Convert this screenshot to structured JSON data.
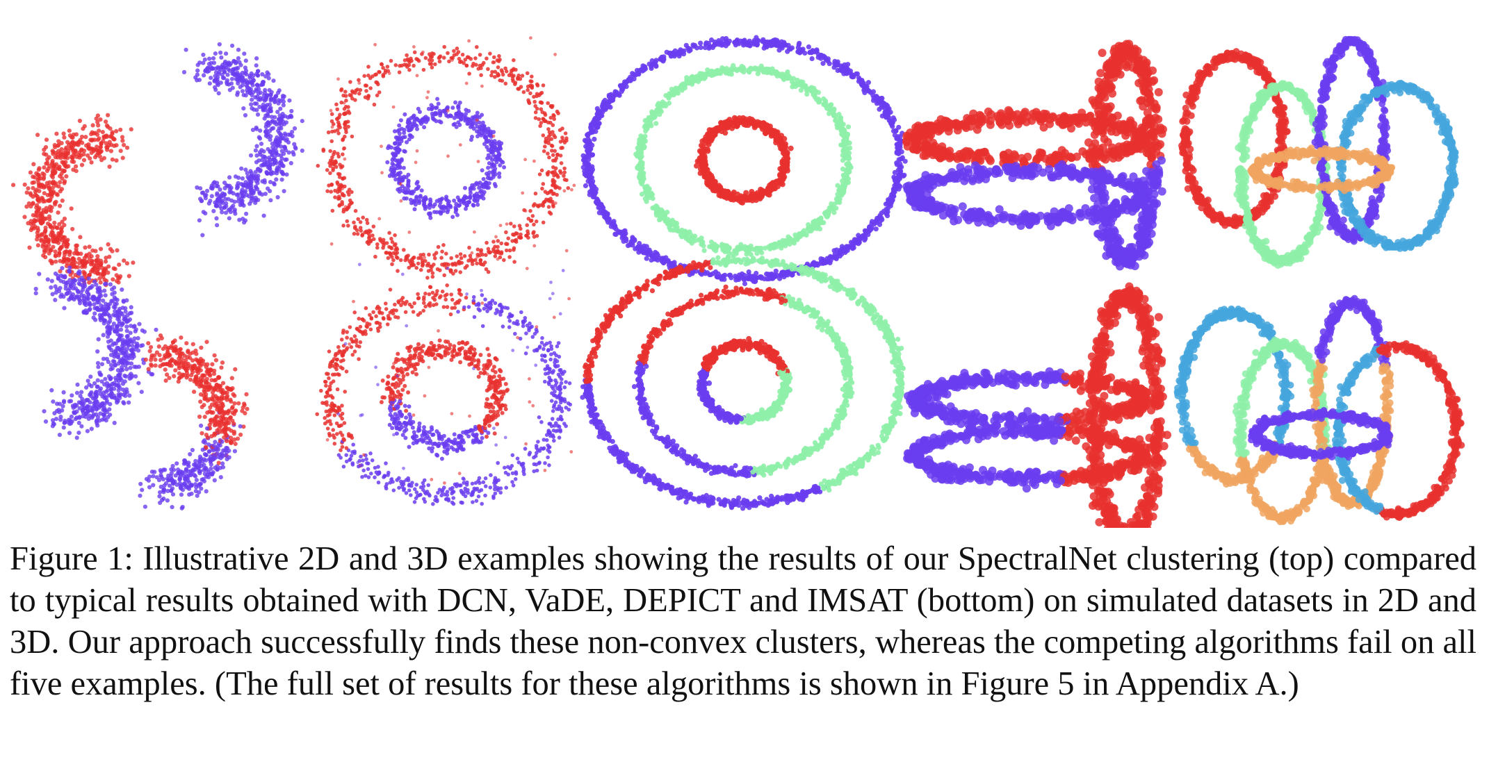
{
  "colors": {
    "red": "#e8312f",
    "purple": "#6a3df0",
    "green": "#8ef0a8",
    "blue": "#45a6dd",
    "orange": "#f0a560"
  },
  "figure": {
    "rows": [
      "SpectralNet (top)",
      "DCN, VaDE, DEPICT and IMSAT (bottom)"
    ],
    "panels": [
      "two-moons",
      "two-rings-noisy",
      "three-rings",
      "3d-loops",
      "3d-rings"
    ]
  },
  "caption": {
    "text": "Figure 1: Illustrative 2D and 3D examples showing the results of our SpectralNet clustering (top) compared to typical results obtained with DCN, VaDE, DEPICT and IMSAT (bottom) on simulated datasets in 2D and 3D. Our approach successfully finds these non-convex clusters, whereas the competing algorithms fail on all five examples. (The full set of results for these algorithms is shown in Figure 5 in Appendix A.)"
  }
}
